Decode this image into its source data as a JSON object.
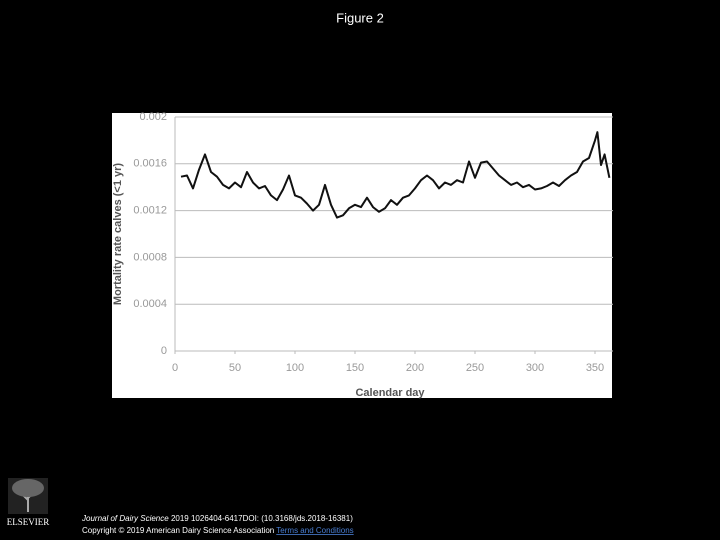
{
  "header": {
    "title": "Figure 2"
  },
  "chart_data": {
    "type": "line",
    "xlabel": "Calendar day",
    "ylabel": "Mortality rate calves (<1 yr)",
    "x": [
      5,
      10,
      15,
      20,
      25,
      30,
      35,
      40,
      45,
      50,
      55,
      60,
      65,
      70,
      75,
      80,
      85,
      90,
      95,
      100,
      105,
      110,
      115,
      120,
      125,
      130,
      135,
      140,
      145,
      150,
      155,
      160,
      165,
      170,
      175,
      180,
      185,
      190,
      195,
      200,
      205,
      210,
      215,
      220,
      225,
      230,
      235,
      240,
      245,
      250,
      255,
      260,
      265,
      270,
      275,
      280,
      285,
      290,
      295,
      300,
      305,
      310,
      315,
      320,
      325,
      330,
      335,
      340,
      345,
      350,
      352,
      355,
      358,
      362
    ],
    "series": [
      {
        "name": "Mortality rate",
        "color": "#111111",
        "values": [
          0.00149,
          0.0015,
          0.00139,
          0.00155,
          0.00168,
          0.00153,
          0.00149,
          0.00142,
          0.00139,
          0.00144,
          0.0014,
          0.00153,
          0.00144,
          0.00139,
          0.00141,
          0.00133,
          0.00129,
          0.00138,
          0.0015,
          0.00133,
          0.00131,
          0.00126,
          0.0012,
          0.00125,
          0.00142,
          0.00125,
          0.00114,
          0.00116,
          0.00122,
          0.00125,
          0.00123,
          0.00131,
          0.00123,
          0.00119,
          0.00122,
          0.00129,
          0.00125,
          0.00131,
          0.00133,
          0.00139,
          0.00146,
          0.0015,
          0.00146,
          0.00139,
          0.00144,
          0.00142,
          0.00146,
          0.00144,
          0.00162,
          0.00148,
          0.00161,
          0.00162,
          0.00156,
          0.0015,
          0.00146,
          0.00142,
          0.00144,
          0.0014,
          0.00142,
          0.00138,
          0.00139,
          0.00141,
          0.00144,
          0.00141,
          0.00146,
          0.0015,
          0.00153,
          0.00162,
          0.00165,
          0.0018,
          0.00187,
          0.00159,
          0.00168,
          0.00148
        ]
      }
    ],
    "xlim": [
      0,
      365
    ],
    "xticks": [
      0,
      50,
      100,
      150,
      200,
      250,
      300,
      350
    ],
    "ylim": [
      0,
      0.002
    ],
    "yticks": [
      0,
      0.0004,
      0.0008,
      0.0012,
      0.0016,
      0.002
    ],
    "grid": true
  },
  "footer": {
    "logo": "ELSEVIER",
    "journal": "Journal of Dairy Science",
    "citation": "2019 1026404-6417DOI: (10.3168/jds.2018-16381)",
    "copyright": "Copyright © 2019 American Dairy Science Association",
    "link": "Terms and Conditions"
  }
}
